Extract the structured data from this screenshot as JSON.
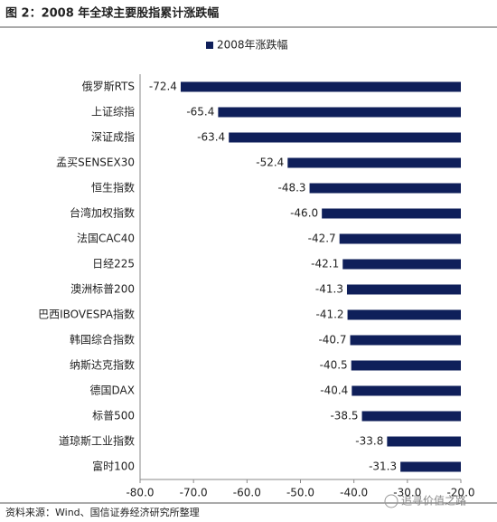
{
  "chart_data": {
    "type": "hbar",
    "title": "图 2：2008 年全球主要股指累计涨跌幅",
    "categories": [
      "俄罗斯RTS",
      "上证综指",
      "深证成指",
      "孟买SENSEX30",
      "恒生指数",
      "台湾加权指数",
      "法国CAC40",
      "日经225",
      "澳洲标普200",
      "巴西IBOVESPA指数",
      "韩国综合指数",
      "纳斯达克指数",
      "德国DAX",
      "标普500",
      "道琼斯工业指数",
      "富时100"
    ],
    "series": [
      {
        "name": "2008年涨跌幅",
        "color": "#0f1f5a",
        "values": [
          -72.4,
          -65.4,
          -63.4,
          -52.4,
          -48.3,
          -46.0,
          -42.7,
          -42.1,
          -41.3,
          -41.2,
          -40.7,
          -40.5,
          -40.4,
          -38.5,
          -33.8,
          -31.3
        ],
        "value_labels": [
          "-72.4",
          "-65.4",
          "-63.4",
          "-52.4",
          "-48.3",
          "-46.0",
          "-42.7",
          "-42.1",
          "-41.3",
          "-41.2",
          "-40.7",
          "-40.5",
          "-40.4",
          "-38.5",
          "-33.8",
          "-31.3"
        ]
      }
    ],
    "xlim": [
      -80,
      -20
    ],
    "xticks": [
      {
        "value": -80,
        "label": "-80.0"
      },
      {
        "value": -70,
        "label": "-70.0"
      },
      {
        "value": -60,
        "label": "-60.0"
      },
      {
        "value": -50,
        "label": "-50.0"
      },
      {
        "value": -40,
        "label": "-40.0"
      },
      {
        "value": -30,
        "label": "-30.0"
      },
      {
        "value": -20,
        "label": "-20.0"
      }
    ],
    "legend": "top",
    "source": "资料来源：Wind、国信证券经济研究所整理",
    "watermark": "追寻价值之路"
  }
}
